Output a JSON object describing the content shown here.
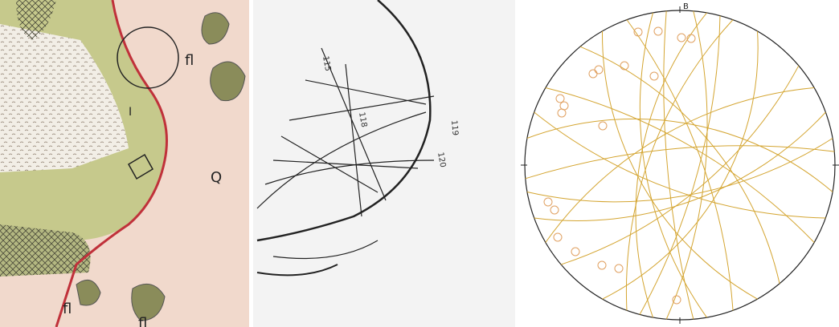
{
  "map_panel": {
    "labels": [
      "fl",
      "I",
      "Q",
      "fl",
      "fl"
    ]
  },
  "sketch_panel": {
    "labels": [
      "115",
      "118",
      "119",
      "120"
    ]
  },
  "stereonet_panel": {
    "north_label": "B"
  }
}
